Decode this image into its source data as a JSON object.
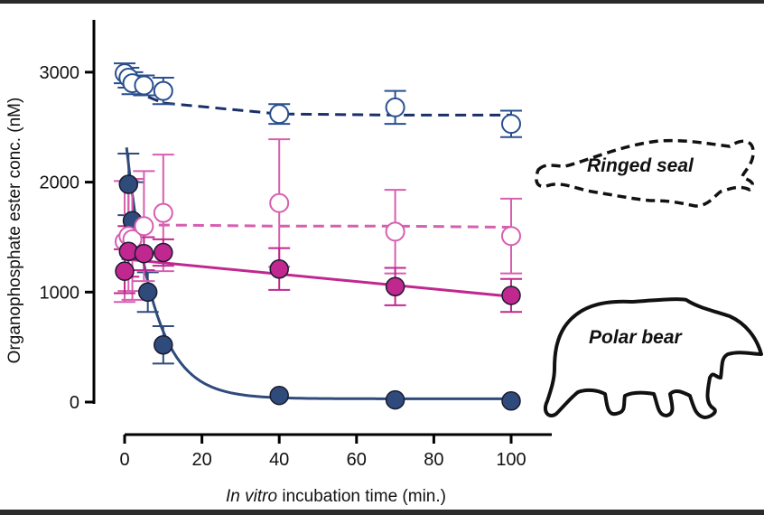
{
  "chart_data": {
    "type": "scatter",
    "title": "",
    "xlabel_italic": "In vitro",
    "xlabel_rest": " incubation time (min.)",
    "ylabel": "Organophosphate ester conc. (nM)",
    "xlim": [
      -3,
      110
    ],
    "ylim": [
      0,
      3500
    ],
    "x_ticks": [
      0,
      20,
      40,
      60,
      80,
      100
    ],
    "x_tick_labels": [
      "0",
      "20",
      "40",
      "60",
      "80",
      "100"
    ],
    "y_ticks": [
      0,
      1000,
      2000,
      3000
    ],
    "y_tick_labels": [
      "0",
      "1000",
      "2000",
      "3000"
    ],
    "grid": false,
    "colors": {
      "seal": "#1f3f7a",
      "bear_fill": "#2f4b7c",
      "magenta": "#c0288f",
      "magenta_light": "#d65fb0"
    },
    "series": [
      {
        "name": "Ringed seal (navy, open)",
        "marker": "open-circle",
        "color": "#2a4f8f",
        "fit": "dashed",
        "x": [
          0,
          1,
          2,
          5,
          10,
          40,
          70,
          100
        ],
        "y": [
          2990,
          2950,
          2900,
          2880,
          2830,
          2620,
          2680,
          2530
        ],
        "err": [
          90,
          90,
          100,
          90,
          120,
          90,
          150,
          120
        ],
        "fit_y": [
          2990,
          2930,
          2870,
          2790,
          2720,
          2620,
          2610,
          2610
        ]
      },
      {
        "name": "Polar bear (navy, filled)",
        "marker": "filled-circle",
        "color": "#2f4b7c",
        "fit": "solid",
        "x": [
          1,
          2,
          6,
          10,
          40,
          70,
          100
        ],
        "y": [
          1980,
          1650,
          1000,
          520,
          60,
          20,
          10
        ],
        "err": [
          280,
          350,
          180,
          170,
          0,
          0,
          0
        ],
        "fit_curve": "exponential"
      },
      {
        "name": "Ringed seal (magenta, open)",
        "marker": "open-circle",
        "color": "#d65fb0",
        "fit": "dashed",
        "x": [
          0,
          1,
          2,
          5,
          10,
          40,
          70,
          100
        ],
        "y": [
          1460,
          1510,
          1480,
          1600,
          1720,
          1810,
          1550,
          1510
        ],
        "err": [
          550,
          500,
          550,
          500,
          530,
          580,
          380,
          340
        ],
        "fit_y": [
          1620,
          1620,
          1610,
          1610,
          1610,
          1600,
          1600,
          1590
        ]
      },
      {
        "name": "Polar bear (magenta, filled)",
        "marker": "filled-circle",
        "color": "#c0288f",
        "fit": "solid",
        "x": [
          0,
          1,
          5,
          10,
          40,
          70,
          100
        ],
        "y": [
          1190,
          1370,
          1350,
          1360,
          1210,
          1050,
          970
        ],
        "err": [
          200,
          230,
          150,
          120,
          190,
          170,
          150
        ],
        "fit_line": [
          1300,
          960
        ]
      }
    ],
    "annotations": [
      "Ringed seal",
      "Polar bear"
    ]
  }
}
